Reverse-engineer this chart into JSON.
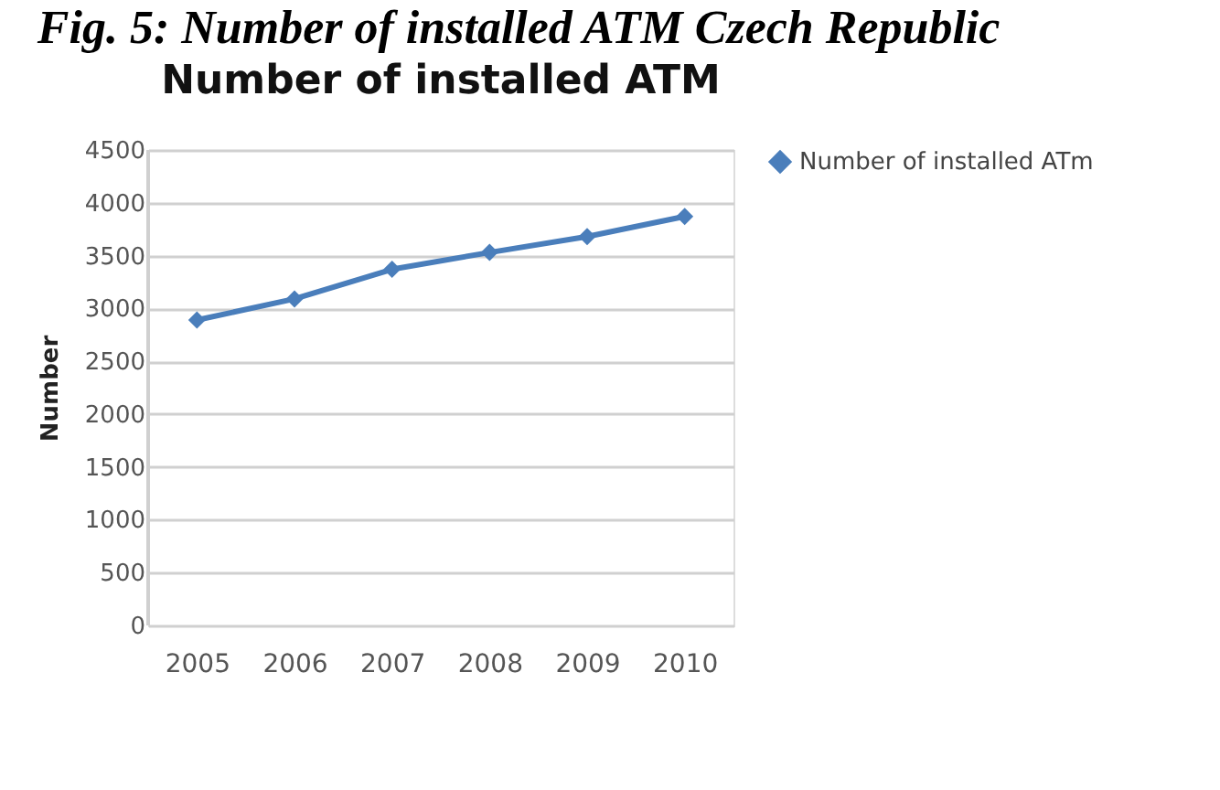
{
  "chart_data": {
    "type": "line",
    "title": "Number of installed  ATM",
    "ylabel": "Number",
    "annotations": [
      "Fig. 5: Number of installed ATM Czech Republic"
    ],
    "categories": [
      "2005",
      "2006",
      "2007",
      "2008",
      "2009",
      "2010"
    ],
    "series": [
      {
        "name": "Number of installed ATm",
        "color": "#4a7ebb",
        "values": [
          2890,
          3090,
          3370,
          3530,
          3680,
          3870
        ]
      }
    ],
    "ylim": [
      0,
      4500
    ],
    "yticks": [
      0,
      500,
      1000,
      1500,
      2000,
      2500,
      3000,
      3500,
      4000,
      4500
    ],
    "grid": "y",
    "legend": "right",
    "marker": "diamond",
    "line_style": "solid"
  }
}
